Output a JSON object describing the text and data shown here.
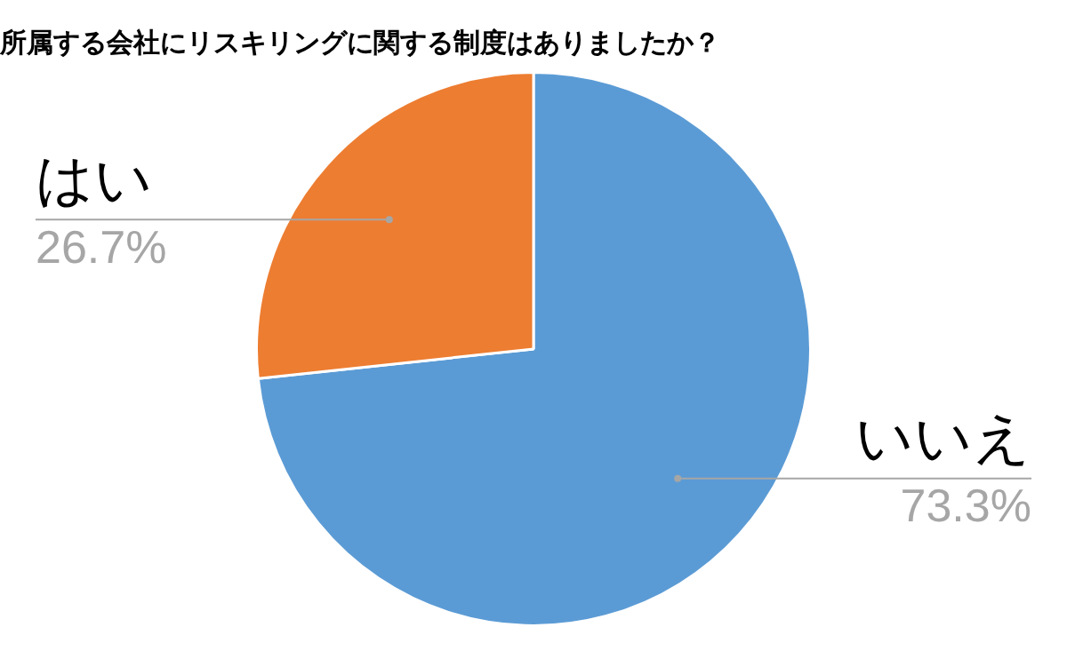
{
  "chart_data": {
    "type": "pie",
    "title": "所属する会社にリスキリングに関する制度はありましたか？",
    "categories": [
      "いいえ",
      "はい"
    ],
    "values": [
      73.3,
      26.7
    ],
    "colors": [
      "#5b9bd5",
      "#ed7d31"
    ],
    "value_labels": [
      "73.3%",
      "26.7%"
    ],
    "legend": false
  }
}
